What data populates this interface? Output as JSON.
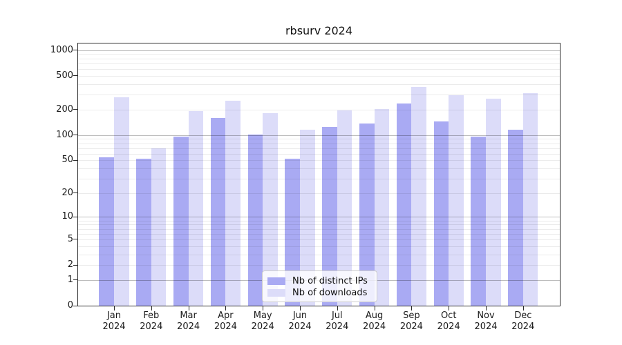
{
  "title": "rbsurv 2024",
  "chart_data": {
    "type": "bar",
    "title": "rbsurv 2024",
    "categories": [
      {
        "month": "Jan",
        "year": "2024"
      },
      {
        "month": "Feb",
        "year": "2024"
      },
      {
        "month": "Mar",
        "year": "2024"
      },
      {
        "month": "Apr",
        "year": "2024"
      },
      {
        "month": "May",
        "year": "2024"
      },
      {
        "month": "Jun",
        "year": "2024"
      },
      {
        "month": "Jul",
        "year": "2024"
      },
      {
        "month": "Aug",
        "year": "2024"
      },
      {
        "month": "Sep",
        "year": "2024"
      },
      {
        "month": "Oct",
        "year": "2024"
      },
      {
        "month": "Nov",
        "year": "2024"
      },
      {
        "month": "Dec",
        "year": "2024"
      }
    ],
    "series": [
      {
        "name": "Nb of distinct IPs",
        "color": "#a9aaf3",
        "values": [
          54,
          52,
          96,
          160,
          101,
          52,
          124,
          136,
          236,
          145,
          95,
          116
        ]
      },
      {
        "name": "Nb of downloads",
        "color": "#dcdcf9",
        "values": [
          278,
          70,
          191,
          255,
          183,
          116,
          197,
          203,
          373,
          296,
          270,
          313
        ]
      }
    ],
    "y_scale": "log1p",
    "y_ticks": [
      1000,
      500,
      200,
      100,
      50,
      20,
      10,
      5,
      2,
      1,
      0
    ],
    "y_major_gridlines": [
      1,
      10,
      100,
      1000
    ],
    "ylim": [
      0,
      1200
    ],
    "xlabel": "",
    "ylabel": "",
    "grid": true,
    "legend_position": "inside-bottom-center"
  }
}
